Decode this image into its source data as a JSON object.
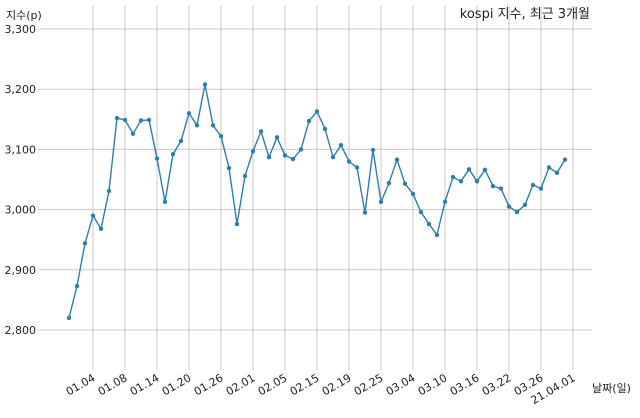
{
  "chart_data": {
    "type": "line",
    "title": "kospi 지수, 최근 3개월",
    "ylabel": "지수(p)",
    "xlabel": "날짜(일)",
    "ylim": [
      2720,
      3300
    ],
    "yticks": [
      2800,
      2900,
      3000,
      3100,
      3200,
      3300
    ],
    "ytick_labels": [
      "2,800",
      "2,900",
      "3,000",
      "3,100",
      "3,200",
      "3,300"
    ],
    "x_tick_labels": [
      "01.04",
      "01.08",
      "01.14",
      "01.20",
      "01.26",
      "02.01",
      "02.05",
      "02.15",
      "02.19",
      "02.25",
      "03.04",
      "03.10",
      "03.16",
      "03.22",
      "03.26",
      "21.04.01"
    ],
    "x_tick_positions": [
      3,
      7,
      11,
      15,
      19,
      23,
      27,
      31,
      35,
      39,
      43,
      47,
      51,
      55,
      59,
      63
    ],
    "grid": true,
    "color": "#2f7ea8",
    "series": [
      {
        "values": [
          2820,
          2873,
          2944,
          2990,
          2968,
          3031,
          3152,
          3149,
          3126,
          3148,
          3149,
          3085,
          3013,
          3092,
          3114,
          3160,
          3140,
          3208,
          3140,
          3122,
          3069,
          2976,
          3056,
          3097,
          3130,
          3087,
          3120,
          3090,
          3084,
          3100,
          3147,
          3163,
          3134,
          3087,
          3107,
          3080,
          3070,
          2995,
          3099,
          3013,
          3044,
          3083,
          3043,
          3026,
          2996,
          2976,
          2958,
          3013,
          3054,
          3047,
          3067,
          3047,
          3066,
          3039,
          3035,
          3005,
          2996,
          3008,
          3041,
          3035,
          3070,
          3061,
          3083
        ]
      }
    ]
  }
}
